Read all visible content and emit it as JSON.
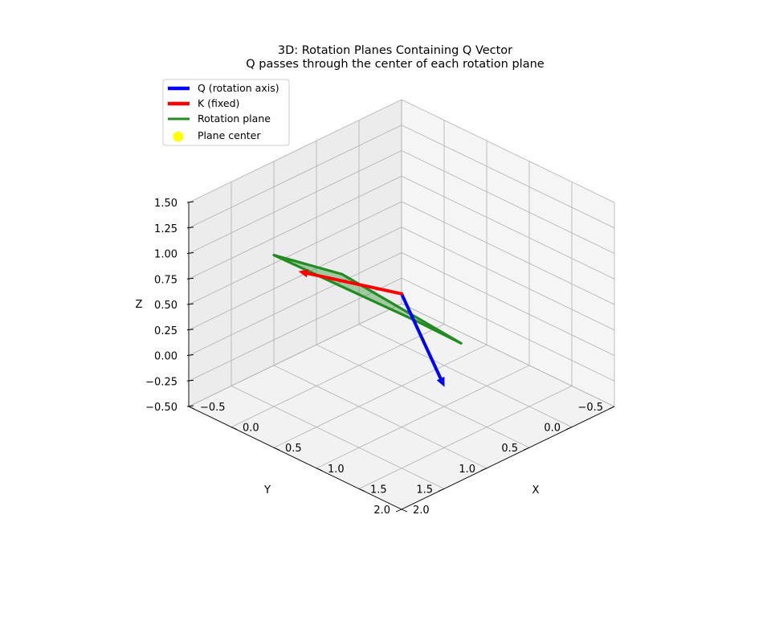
{
  "chart_data": {
    "type": "3d-line",
    "title": "3D: Rotation Planes Containing Q Vector",
    "subtitle": "Q passes through the center of each rotation plane",
    "xlabel": "X",
    "ylabel": "Y",
    "zlabel": "Z",
    "xlim": [
      -0.5,
      2.0
    ],
    "ylim": [
      -0.5,
      2.0
    ],
    "zlim": [
      -0.5,
      1.5
    ],
    "x_ticks": [
      "−0.5",
      "0.0",
      "0.5",
      "1.0",
      "1.5",
      "2.0"
    ],
    "y_ticks": [
      "−0.5",
      "0.0",
      "0.5",
      "1.0",
      "1.5",
      "2.0"
    ],
    "z_ticks": [
      "−0.50",
      "−0.25",
      "0.00",
      "0.25",
      "0.50",
      "0.75",
      "1.00",
      "1.25",
      "1.50"
    ],
    "grid": true,
    "legend_position": "top-left",
    "legend": [
      {
        "label": "Q (rotation axis)",
        "color": "#0000ff",
        "kind": "line"
      },
      {
        "label": "K (fixed)",
        "color": "#ff0000",
        "kind": "line"
      },
      {
        "label": "Rotation plane",
        "color": "#228b22",
        "kind": "line"
      },
      {
        "label": "Plane center",
        "color": "#ffff00",
        "kind": "marker"
      }
    ],
    "series": [
      {
        "name": "Q (rotation axis)",
        "color": "#0000ff",
        "from": [
          0,
          0,
          0
        ],
        "to": [
          1.0,
          0.5,
          -0.3
        ]
      },
      {
        "name": "K (fixed)",
        "color": "#ff0000",
        "from": [
          0,
          0,
          0
        ],
        "to": [
          -0.25,
          0.95,
          0.5
        ]
      },
      {
        "name": "Rotation plane",
        "color": "#228b22",
        "corners": [
          [
            0.9,
            1.6,
            1.2
          ],
          [
            -0.6,
            0.9,
            0.5
          ],
          [
            -0.3,
            -0.5,
            -0.6
          ],
          [
            1.2,
            0.5,
            0.2
          ]
        ]
      },
      {
        "name": "Plane center",
        "color": "#ffff00",
        "point": [
          0.5,
          0.25,
          -0.15
        ]
      }
    ]
  }
}
